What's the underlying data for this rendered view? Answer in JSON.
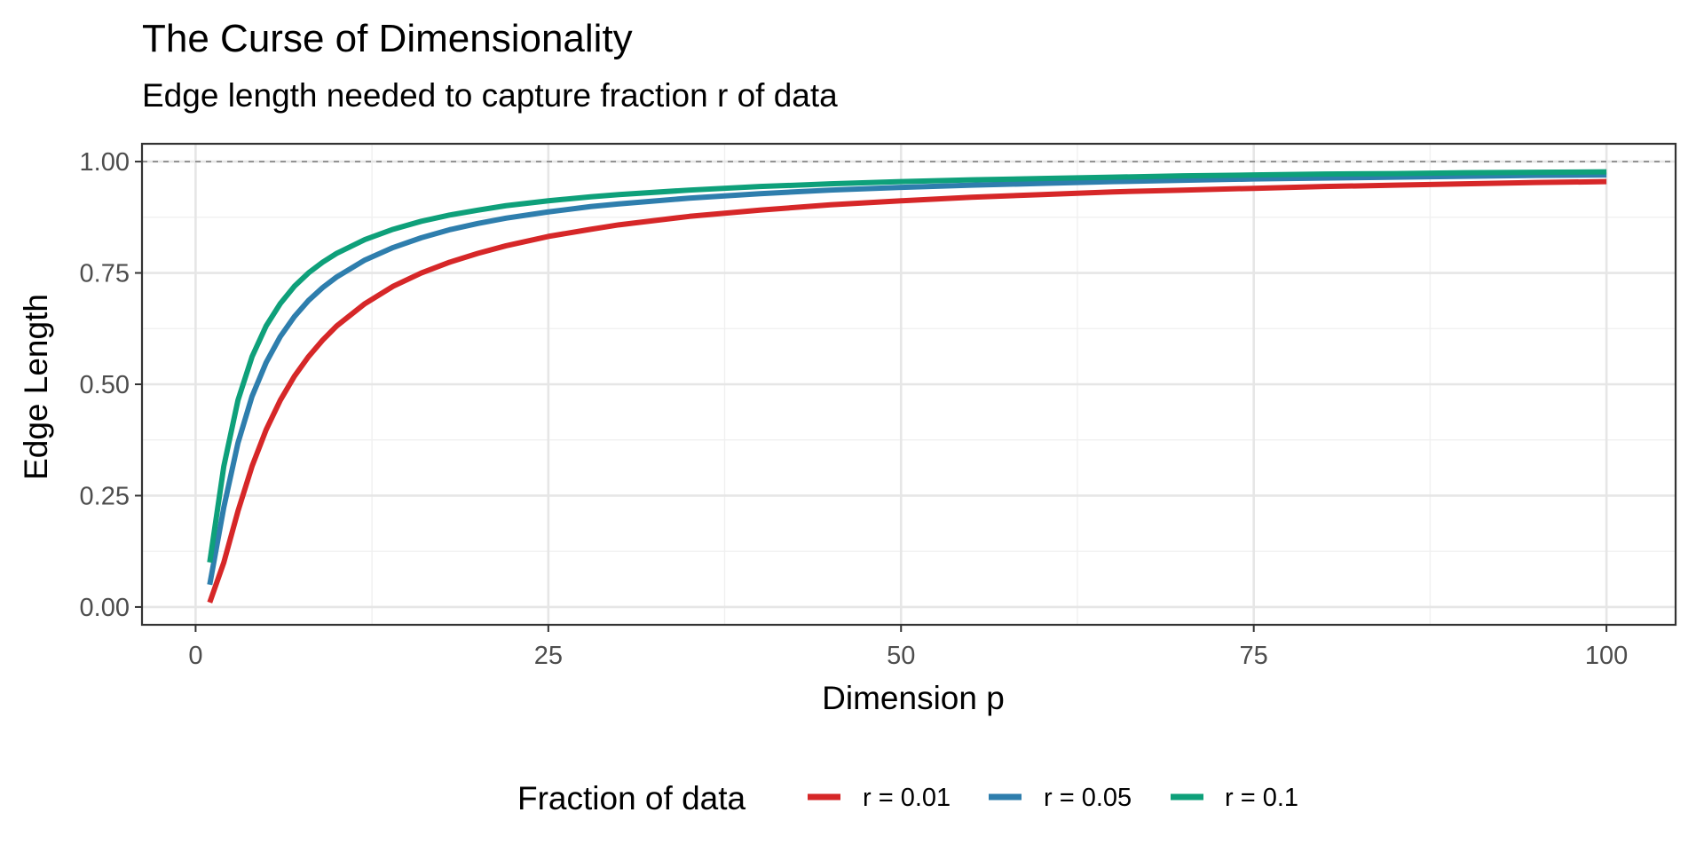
{
  "chart_data": {
    "type": "line",
    "title": "The Curse of Dimensionality",
    "subtitle": "Edge length needed to capture fraction r of data",
    "xlabel": "Dimension p",
    "ylabel": "Edge Length",
    "xlim": [
      -3.8,
      104.9
    ],
    "ylim": [
      -0.04,
      1.04
    ],
    "x_ticks": [
      0,
      25,
      50,
      75,
      100
    ],
    "x_tick_labels": [
      "0",
      "25",
      "50",
      "75",
      "100"
    ],
    "y_ticks": [
      0,
      0.25,
      0.5,
      0.75,
      1
    ],
    "y_tick_labels": [
      "0.00",
      "0.25",
      "0.50",
      "0.75",
      "1.00"
    ],
    "grid": true,
    "reference_line": {
      "y": 1.0,
      "style": "dashed",
      "color": "#808080"
    },
    "x": [
      1,
      2,
      3,
      4,
      5,
      6,
      7,
      8,
      9,
      10,
      12,
      14,
      16,
      18,
      20,
      22,
      25,
      28,
      30,
      35,
      40,
      45,
      50,
      55,
      60,
      65,
      70,
      75,
      80,
      85,
      90,
      95,
      100
    ],
    "series": [
      {
        "name": "r = 0.01",
        "color": "#d62728",
        "values": [
          0.01,
          0.1,
          0.215,
          0.316,
          0.398,
          0.464,
          0.518,
          0.562,
          0.599,
          0.631,
          0.681,
          0.72,
          0.75,
          0.774,
          0.794,
          0.811,
          0.832,
          0.848,
          0.858,
          0.877,
          0.891,
          0.903,
          0.912,
          0.92,
          0.926,
          0.932,
          0.936,
          0.94,
          0.944,
          0.947,
          0.95,
          0.953,
          0.955
        ]
      },
      {
        "name": "r = 0.05",
        "color": "#2e7ead",
        "values": [
          0.05,
          0.224,
          0.368,
          0.473,
          0.549,
          0.607,
          0.652,
          0.688,
          0.717,
          0.741,
          0.779,
          0.807,
          0.829,
          0.847,
          0.861,
          0.873,
          0.887,
          0.899,
          0.905,
          0.918,
          0.928,
          0.936,
          0.942,
          0.947,
          0.951,
          0.955,
          0.958,
          0.961,
          0.963,
          0.965,
          0.967,
          0.969,
          0.97
        ]
      },
      {
        "name": "r = 0.1",
        "color": "#0ea07a",
        "values": [
          0.1,
          0.316,
          0.464,
          0.562,
          0.631,
          0.681,
          0.72,
          0.75,
          0.774,
          0.794,
          0.825,
          0.848,
          0.866,
          0.88,
          0.891,
          0.901,
          0.912,
          0.921,
          0.926,
          0.936,
          0.944,
          0.95,
          0.955,
          0.959,
          0.962,
          0.965,
          0.968,
          0.97,
          0.972,
          0.973,
          0.975,
          0.976,
          0.977
        ]
      }
    ],
    "legend": {
      "title": "Fraction of data",
      "position": "bottom",
      "entries": [
        "r = 0.01",
        "r = 0.05",
        "r = 0.1"
      ]
    }
  }
}
